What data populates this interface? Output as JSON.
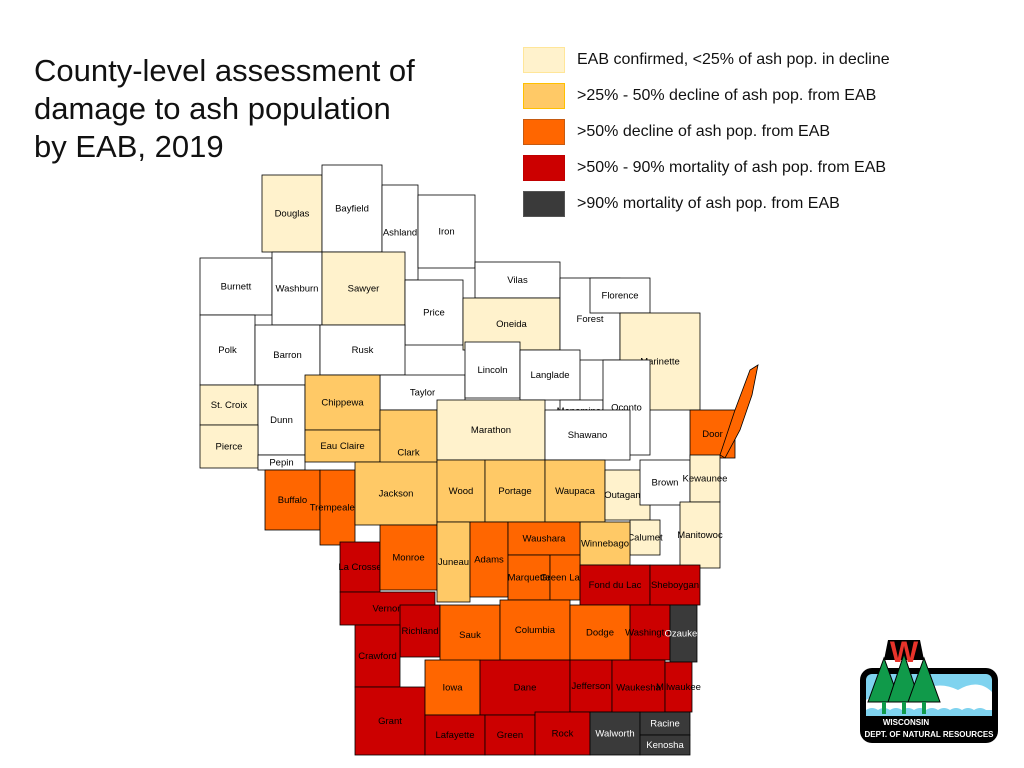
{
  "title": "County-level assessment of\ndamage to ash population\nby EAB, 2019",
  "legend": [
    {
      "label": "EAB confirmed, <25% of ash pop. in decline",
      "color": "#fff2cc",
      "border": "#ffe699"
    },
    {
      "label": ">25% - 50% decline of ash pop. from EAB",
      "color": "#ffc966",
      "border": "#ffc000"
    },
    {
      "label": ">50% decline of ash pop. from EAB",
      "color": "#ff6600",
      "border": "#c55a11"
    },
    {
      "label": ">50% - 90% mortality of ash pop. from EAB",
      "color": "#cc0000",
      "border": "#c00000"
    },
    {
      "label": ">90% mortality of ash pop. from EAB",
      "color": "#3a3a3a",
      "border": "#555555"
    }
  ],
  "no_data_color": "#ffffff",
  "counties": [
    {
      "name": "Douglas",
      "cat": 0
    },
    {
      "name": "Bayfield",
      "cat": -1
    },
    {
      "name": "Ashland",
      "cat": -1
    },
    {
      "name": "Iron",
      "cat": -1
    },
    {
      "name": "Vilas",
      "cat": -1
    },
    {
      "name": "Burnett",
      "cat": -1
    },
    {
      "name": "Washburn",
      "cat": -1
    },
    {
      "name": "Sawyer",
      "cat": 0
    },
    {
      "name": "Price",
      "cat": -1
    },
    {
      "name": "Oneida",
      "cat": 0
    },
    {
      "name": "Forest",
      "cat": -1
    },
    {
      "name": "Florence",
      "cat": -1
    },
    {
      "name": "Marinette",
      "cat": 0
    },
    {
      "name": "Polk",
      "cat": -1
    },
    {
      "name": "Barron",
      "cat": -1
    },
    {
      "name": "Rusk",
      "cat": -1
    },
    {
      "name": "Taylor",
      "cat": -1
    },
    {
      "name": "Lincoln",
      "cat": -1
    },
    {
      "name": "Langlade",
      "cat": -1
    },
    {
      "name": "Menominee",
      "cat": -1
    },
    {
      "name": "Oconto",
      "cat": -1
    },
    {
      "name": "St. Croix",
      "cat": 0
    },
    {
      "name": "Dunn",
      "cat": -1
    },
    {
      "name": "Chippewa",
      "cat": 1
    },
    {
      "name": "Pierce",
      "cat": 0
    },
    {
      "name": "Pepin",
      "cat": -1
    },
    {
      "name": "Eau Claire",
      "cat": 1
    },
    {
      "name": "Clark",
      "cat": 1
    },
    {
      "name": "Marathon",
      "cat": 0
    },
    {
      "name": "Shawano",
      "cat": -1
    },
    {
      "name": "Door",
      "cat": 2
    },
    {
      "name": "Buffalo",
      "cat": 2
    },
    {
      "name": "Trempealeau",
      "cat": 2
    },
    {
      "name": "Jackson",
      "cat": 1
    },
    {
      "name": "Wood",
      "cat": 1
    },
    {
      "name": "Portage",
      "cat": 1
    },
    {
      "name": "Waupaca",
      "cat": 1
    },
    {
      "name": "Outagamie",
      "cat": 0
    },
    {
      "name": "Brown",
      "cat": -1
    },
    {
      "name": "Kewaunee",
      "cat": 0
    },
    {
      "name": "Manitowoc",
      "cat": 0
    },
    {
      "name": "Calumet",
      "cat": 0
    },
    {
      "name": "Winnebago",
      "cat": 1
    },
    {
      "name": "La Crosse",
      "cat": 3
    },
    {
      "name": "Monroe",
      "cat": 2
    },
    {
      "name": "Juneau",
      "cat": 1
    },
    {
      "name": "Adams",
      "cat": 2
    },
    {
      "name": "Waushara",
      "cat": 2
    },
    {
      "name": "Marquette",
      "cat": 2
    },
    {
      "name": "Green Lake",
      "cat": 2
    },
    {
      "name": "Fond du Lac",
      "cat": 3
    },
    {
      "name": "Sheboygan",
      "cat": 3
    },
    {
      "name": "Vernon",
      "cat": 3
    },
    {
      "name": "Richland",
      "cat": 3
    },
    {
      "name": "Sauk",
      "cat": 2
    },
    {
      "name": "Columbia",
      "cat": 2
    },
    {
      "name": "Dodge",
      "cat": 2
    },
    {
      "name": "Washington",
      "cat": 3
    },
    {
      "name": "Ozaukee",
      "cat": 4
    },
    {
      "name": "Crawford",
      "cat": 3
    },
    {
      "name": "Grant",
      "cat": 3
    },
    {
      "name": "Iowa",
      "cat": 2
    },
    {
      "name": "Dane",
      "cat": 3
    },
    {
      "name": "Jefferson",
      "cat": 3
    },
    {
      "name": "Waukesha",
      "cat": 3
    },
    {
      "name": "Milwaukee",
      "cat": 3
    },
    {
      "name": "Lafayette",
      "cat": 3
    },
    {
      "name": "Green",
      "cat": 3
    },
    {
      "name": "Rock",
      "cat": 3
    },
    {
      "name": "Walworth",
      "cat": 4
    },
    {
      "name": "Racine",
      "cat": 4
    },
    {
      "name": "Kenosha",
      "cat": 4
    }
  ],
  "logo": {
    "line1": "WISCONSIN",
    "line2": "DEPT. OF NATURAL RESOURCES",
    "letter": "W"
  }
}
